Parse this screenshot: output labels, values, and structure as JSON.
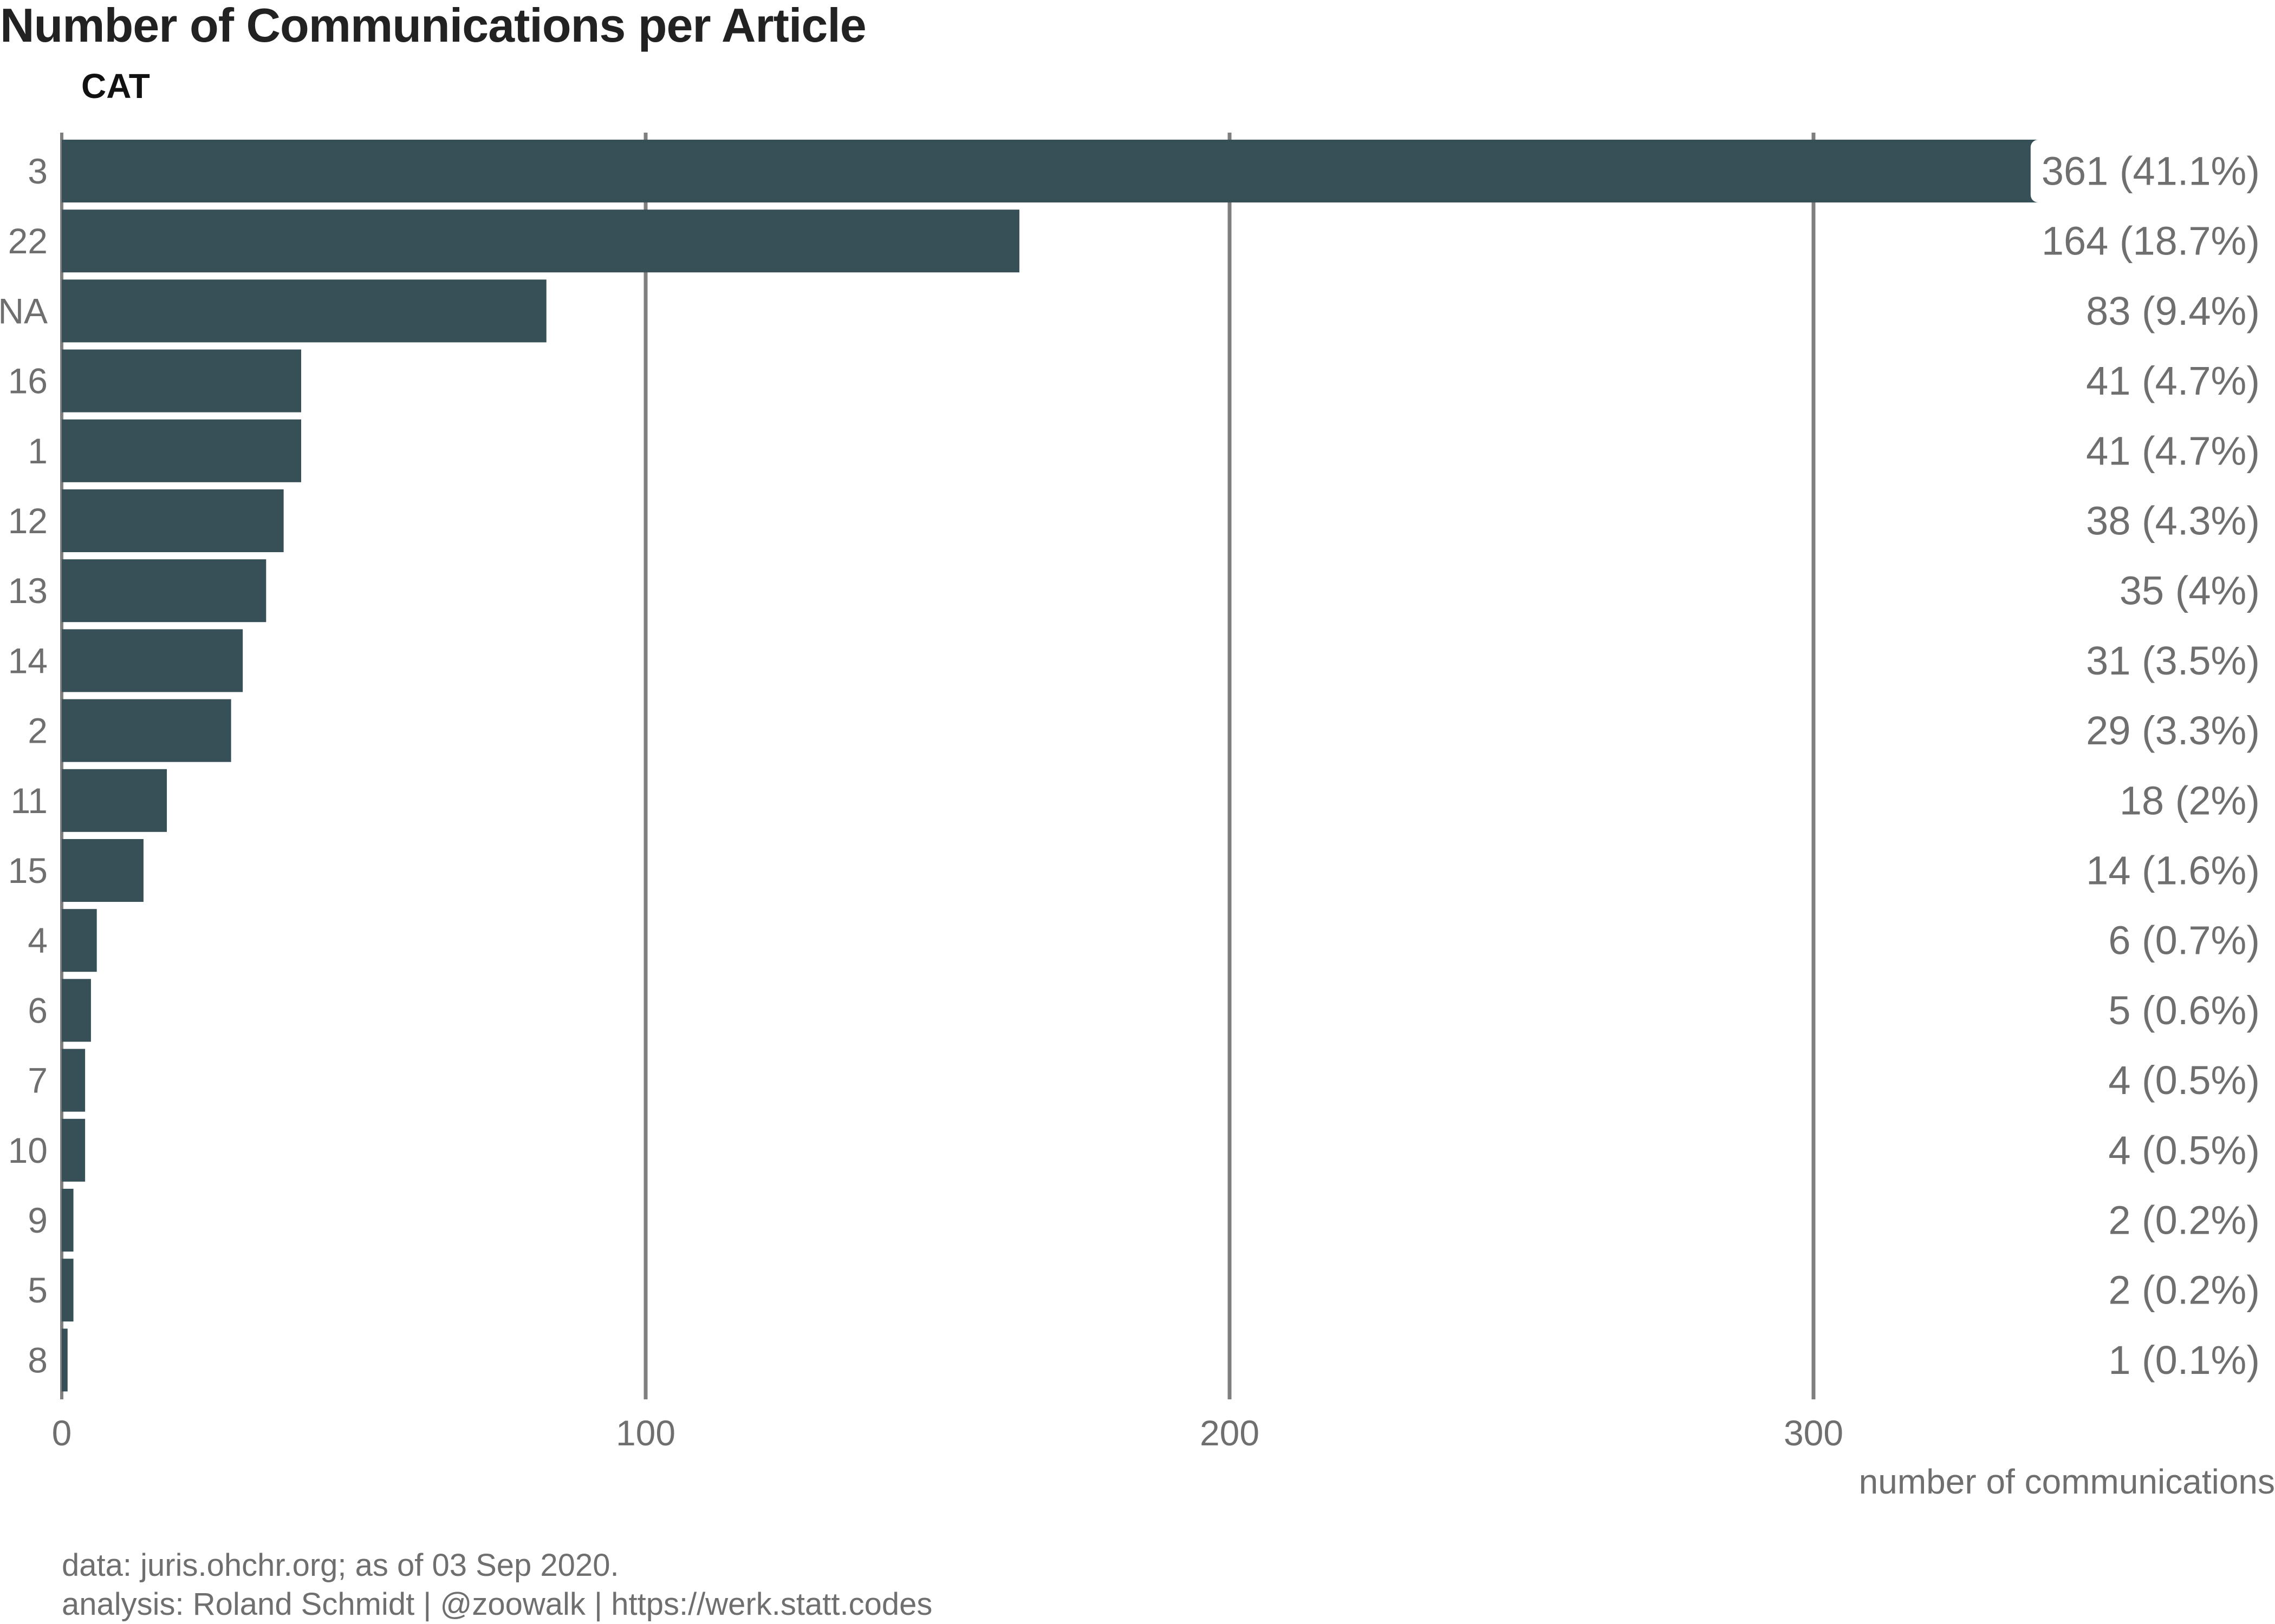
{
  "title": "Number of Communications per Article",
  "chart_data": {
    "type": "bar",
    "orientation": "horizontal",
    "facet_label": "CAT",
    "categories": [
      "3",
      "22",
      "NA",
      "16",
      "1",
      "12",
      "13",
      "14",
      "2",
      "11",
      "15",
      "4",
      "6",
      "7",
      "10",
      "9",
      "5",
      "8"
    ],
    "values": [
      361,
      164,
      83,
      41,
      41,
      38,
      35,
      31,
      29,
      18,
      14,
      6,
      5,
      4,
      4,
      2,
      2,
      1
    ],
    "value_labels": [
      "361 (41.1%)",
      "164 (18.7%)",
      "83 (9.4%)",
      "41 (4.7%)",
      "41 (4.7%)",
      "38 (4.3%)",
      "35 (4%)",
      "31 (3.5%)",
      "29 (3.3%)",
      "18 (2%)",
      "14 (1.6%)",
      "6 (0.7%)",
      "5 (0.6%)",
      "4 (0.5%)",
      "4 (0.5%)",
      "2 (0.2%)",
      "2 (0.2%)",
      "1 (0.1%)"
    ],
    "xlabel": "number of communications",
    "ylabel": "",
    "xticks": [
      0,
      100,
      200,
      300
    ],
    "xlim": [
      0,
      339
    ],
    "grid": "vertical major gridlines",
    "bar_color": "#374f56",
    "grid_color": "#7f7f7f",
    "text_color": "#6f6f6f"
  },
  "caption": {
    "line1": "data: juris.ohchr.org; as of 03 Sep 2020.",
    "line2": "analysis: Roland Schmidt | @zoowalk | https://werk.statt.codes"
  }
}
